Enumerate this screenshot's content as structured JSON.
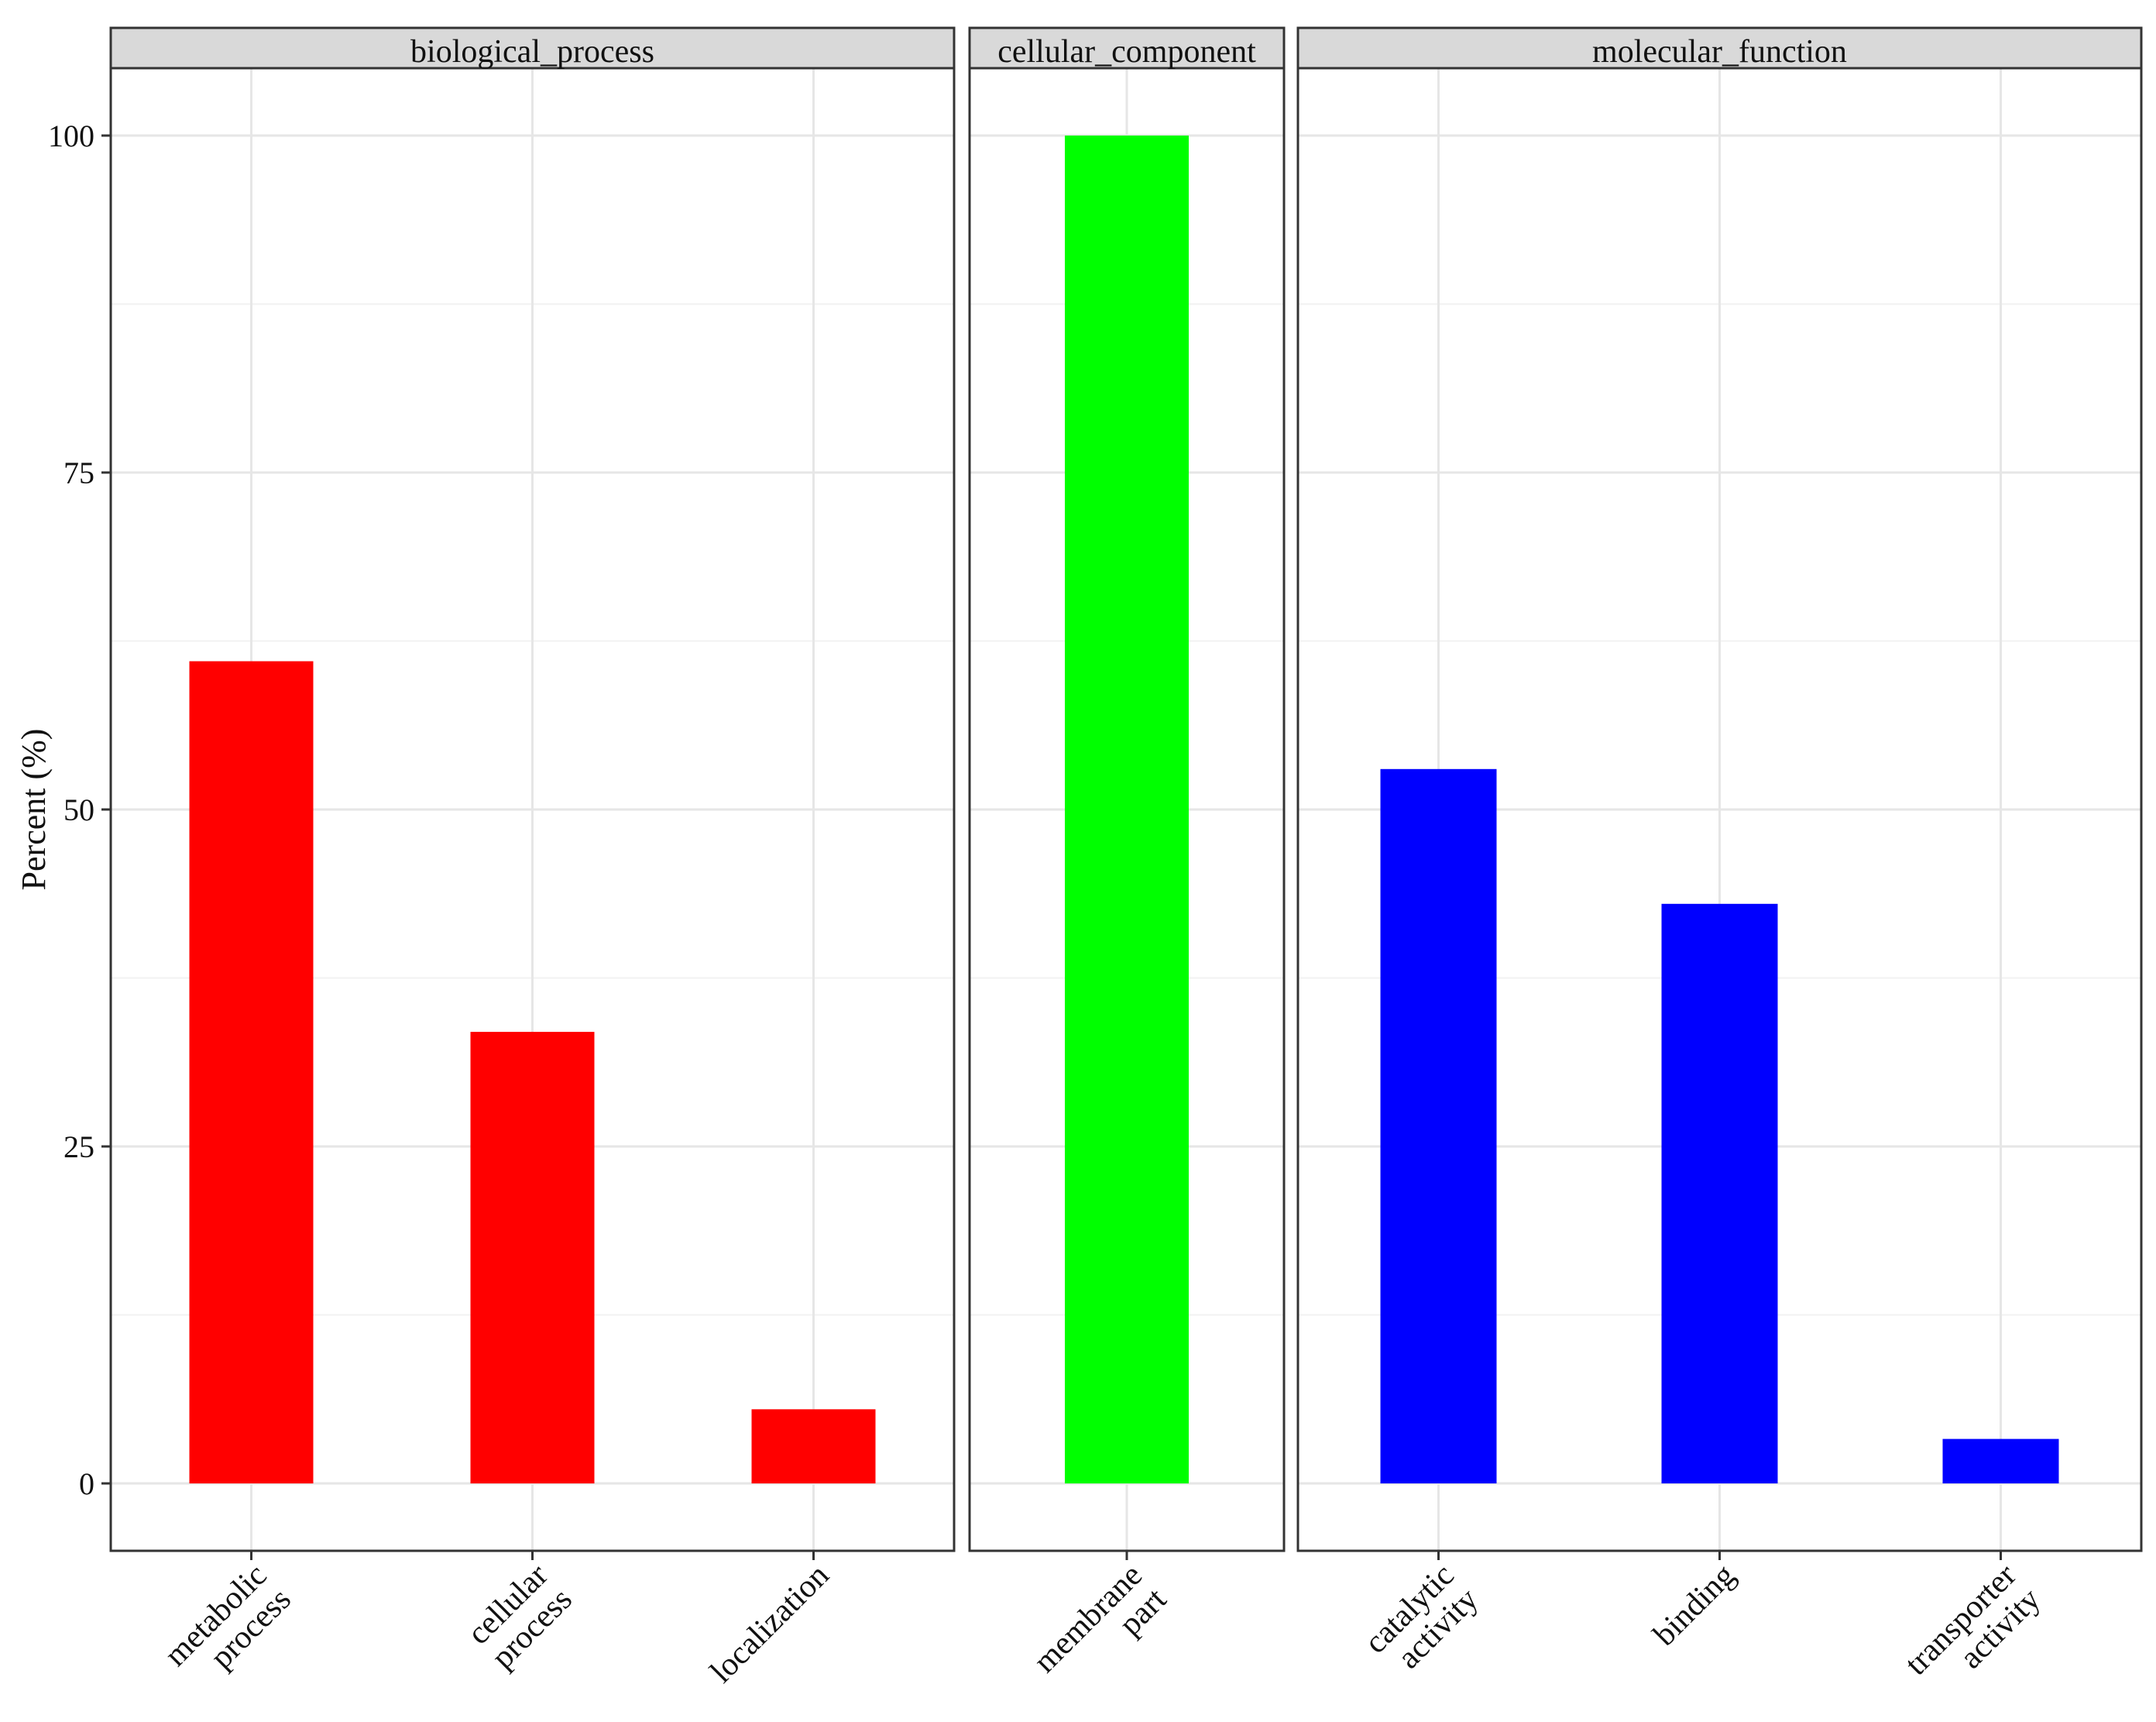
{
  "chart_data": {
    "type": "bar",
    "ylabel": "Percent (%)",
    "xlabel": "",
    "ylim": [
      -5,
      105
    ],
    "yticks": [
      0,
      25,
      50,
      75,
      100
    ],
    "grid": true,
    "legend": "none",
    "facets": [
      {
        "name": "biological_process",
        "color": "#ff0000",
        "categories": [
          "metabolic process",
          "cellular process",
          "localization"
        ],
        "category_lines": [
          [
            "metabolic",
            "process"
          ],
          [
            "cellular",
            "process"
          ],
          [
            "localization"
          ]
        ],
        "values": [
          61,
          33.5,
          5.5
        ]
      },
      {
        "name": "cellular_component",
        "color": "#00ff00",
        "categories": [
          "membrane part"
        ],
        "category_lines": [
          [
            "membrane",
            "part"
          ]
        ],
        "values": [
          100
        ]
      },
      {
        "name": "molecular_function",
        "color": "#0000ff",
        "categories": [
          "catalytic activity",
          "binding",
          "transporter activity"
        ],
        "category_lines": [
          [
            "catalytic",
            "activity"
          ],
          [
            "binding"
          ],
          [
            "transporter",
            "activity"
          ]
        ],
        "values": [
          53,
          43,
          3.3
        ]
      }
    ]
  }
}
